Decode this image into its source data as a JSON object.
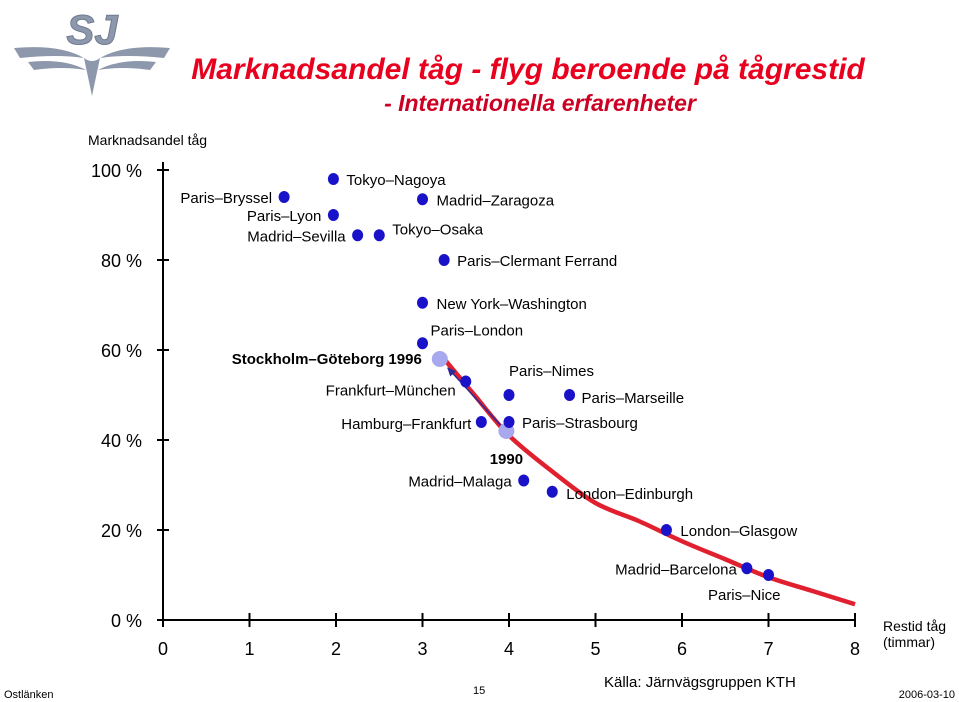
{
  "logo": {
    "text": "SJ"
  },
  "footer": {
    "left": "Ostlänken",
    "page_number": "15",
    "date": "2006-03-10"
  },
  "colors": {
    "title": "#e8001e",
    "subtitle": "#cc0022",
    "curve": "#e0202e",
    "point": "#1a12c8",
    "highlight": "#a8a8ee",
    "arrow": "#2a2a9a",
    "axis": "#000000"
  },
  "chart_data": {
    "type": "scatter",
    "title": "Marknadsandel tåg - flyg beroende på tågrestid",
    "subtitle": "- Internationella erfarenheter",
    "ylabel": "Marknadsandel tåg",
    "xlabel": [
      "Restid tåg",
      "(timmar)"
    ],
    "source": "Källa: Järnvägsgruppen KTH",
    "xlim": [
      0,
      8
    ],
    "ylim": [
      0,
      100
    ],
    "x_ticks": [
      0,
      1,
      2,
      3,
      4,
      5,
      6,
      7,
      8
    ],
    "x_tick_labels": [
      "0",
      "1",
      "2",
      "3",
      "4",
      "5",
      "6",
      "7",
      "8"
    ],
    "y_ticks": [
      0,
      20,
      40,
      60,
      80,
      100
    ],
    "y_tick_labels": [
      "0 %",
      "20 %",
      "40 %",
      "60 %",
      "80 %",
      "100 %"
    ],
    "grid": false,
    "points": [
      {
        "label": "Tokyo–Nagoya",
        "x": 1.97,
        "y": 98
      },
      {
        "label": "Paris–Bryssel",
        "x": 1.4,
        "y": 94
      },
      {
        "label": "Madrid–Zaragoza",
        "x": 3.0,
        "y": 93.5
      },
      {
        "label": "Paris–Lyon",
        "x": 1.97,
        "y": 90
      },
      {
        "label": "Madrid–Sevilla",
        "x": 2.25,
        "y": 85.5
      },
      {
        "label": "Tokyo–Osaka",
        "x": 2.5,
        "y": 85.5
      },
      {
        "label": "Paris–Clermant Ferrand",
        "x": 3.25,
        "y": 80
      },
      {
        "label": "New York–Washington",
        "x": 3.0,
        "y": 70.5
      },
      {
        "label": "Paris–London",
        "x": 3.0,
        "y": 61.5
      },
      {
        "label": "Frankfurt–München",
        "x": 3.5,
        "y": 53
      },
      {
        "label": "Paris–Nimes",
        "x": 4.0,
        "y": 50
      },
      {
        "label": "Paris–Marseille",
        "x": 4.7,
        "y": 50
      },
      {
        "label": "Hamburg–Frankfurt",
        "x": 3.68,
        "y": 44
      },
      {
        "label": "Paris–Strasbourg",
        "x": 4.0,
        "y": 44
      },
      {
        "label": "Madrid–Malaga",
        "x": 4.17,
        "y": 31
      },
      {
        "label": "London–Edinburgh",
        "x": 4.5,
        "y": 28.5
      },
      {
        "label": "London–Glasgow",
        "x": 5.82,
        "y": 20
      },
      {
        "label": "Madrid–Barcelona",
        "x": 6.75,
        "y": 11.5
      },
      {
        "label": "Paris–Nice",
        "x": 7.0,
        "y": 10
      }
    ],
    "highlights": [
      {
        "label": "Stockholm–Göteborg 1996",
        "x": 3.2,
        "y": 58
      },
      {
        "label": "1990",
        "x": 3.97,
        "y": 42
      }
    ],
    "trend_curve": [
      {
        "x": 3.25,
        "y": 58
      },
      {
        "x": 3.6,
        "y": 50
      },
      {
        "x": 4.0,
        "y": 41
      },
      {
        "x": 4.5,
        "y": 33
      },
      {
        "x": 5.0,
        "y": 26
      },
      {
        "x": 5.5,
        "y": 22
      },
      {
        "x": 6.0,
        "y": 17.5
      },
      {
        "x": 6.5,
        "y": 13.5
      },
      {
        "x": 7.0,
        "y": 9.5
      },
      {
        "x": 7.5,
        "y": 6.5
      },
      {
        "x": 8.0,
        "y": 3.5
      }
    ]
  }
}
